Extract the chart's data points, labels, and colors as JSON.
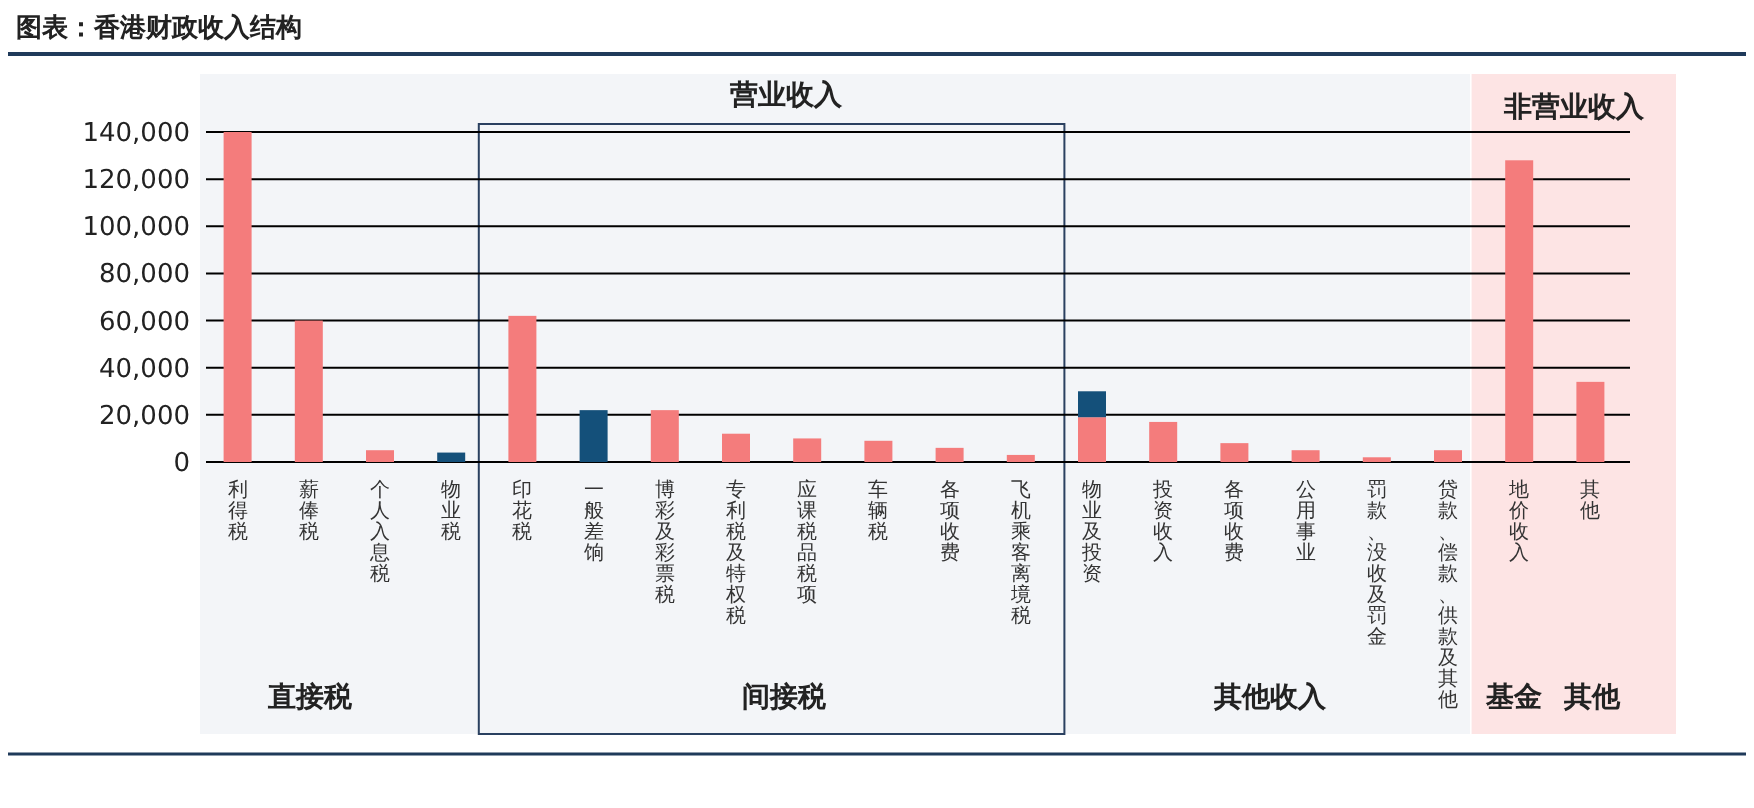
{
  "chart_data": {
    "type": "bar",
    "title": "图表：香港财政收入结构",
    "categories": [
      "利得税",
      "薪俸税",
      "个人入息税",
      "物业税",
      "印花税",
      "一般差饷",
      "博彩及彩票税",
      "专利税及特权税",
      "应课税品税项",
      "车辆税",
      "各项收费",
      "飞机乘客离境税",
      "物业及投资",
      "投资收入",
      "各项收费",
      "公用事业",
      "罚款、没收及罚金",
      "贷款、偿款、供款及其他",
      "地价收入",
      "其他"
    ],
    "stacked": true,
    "series": [
      {
        "color": "#f47c7c",
        "values": [
          140000,
          60000,
          5000,
          null,
          62000,
          null,
          22000,
          12000,
          10000,
          9000,
          6000,
          3000,
          19000,
          17000,
          8000,
          5000,
          2000,
          5000,
          128000,
          34000
        ]
      },
      {
        "color": "#14507a",
        "values": [
          null,
          null,
          null,
          4000,
          null,
          22000,
          null,
          null,
          null,
          null,
          null,
          null,
          11000,
          null,
          null,
          null,
          null,
          null,
          null,
          null
        ]
      }
    ],
    "ylim": [
      0,
      140000
    ],
    "yticks": [
      {
        "value": 0,
        "label": "0"
      },
      {
        "value": 20000,
        "label": "20,000"
      },
      {
        "value": 40000,
        "label": "40,000"
      },
      {
        "value": 60000,
        "label": "60,000"
      },
      {
        "value": 80000,
        "label": "80,000"
      },
      {
        "value": 100000,
        "label": "100,000"
      },
      {
        "value": 120000,
        "label": "120,000"
      },
      {
        "value": 140000,
        "label": "140,000"
      }
    ],
    "grid": "y",
    "bands": [
      {
        "axis": "x",
        "from": "地价收入",
        "to": "其他",
        "label": "非营业收入",
        "color": "#fde4e4"
      }
    ],
    "annotations": [
      "营业收入",
      "直接税",
      "间接税",
      "其他收入",
      "基金",
      "其他"
    ]
  }
}
